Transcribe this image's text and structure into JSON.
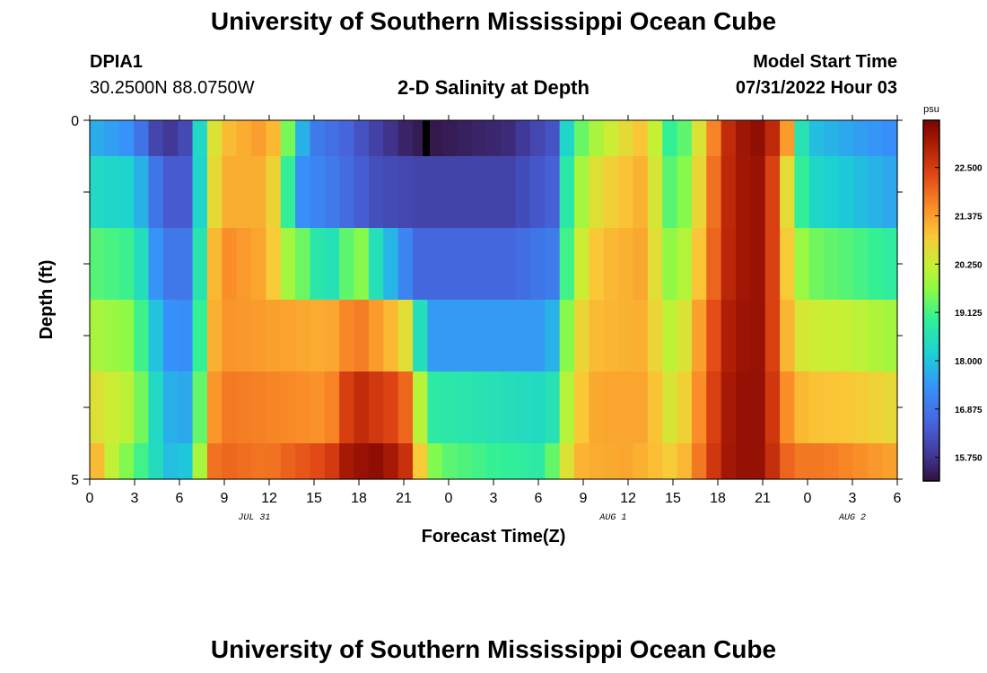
{
  "header": {
    "title": "University of Southern Mississippi Ocean Cube",
    "station": "DPIA1",
    "coords": "30.2500N  88.0750W",
    "plot_title": "2-D Salinity at Depth",
    "model_start_label": "Model Start Time",
    "model_start_value": "07/31/2022 Hour 03"
  },
  "footer": {
    "title": "University of Southern Mississippi Ocean Cube"
  },
  "chart_data": {
    "type": "heatmap",
    "title": "2-D Salinity at Depth",
    "xlabel": "Forecast Time(Z)",
    "ylabel": "Depth (ft)",
    "x_tick_labels": [
      "0",
      "3",
      "6",
      "9",
      "12",
      "15",
      "18",
      "21",
      "0",
      "3",
      "6",
      "9",
      "12",
      "15",
      "18",
      "21",
      "0",
      "3",
      "6"
    ],
    "x_date_labels": [
      {
        "label": "JUL 31",
        "hour": 11
      },
      {
        "label": "AUG 1",
        "hour": 35
      },
      {
        "label": "AUG 2",
        "hour": 51
      }
    ],
    "x_range_hours": [
      0,
      54
    ],
    "y_tick_labels": [
      "0",
      "5"
    ],
    "y_range": [
      0,
      5
    ],
    "colorbar": {
      "unit": "psu",
      "tick_labels": [
        "22.500",
        "21.375",
        "20.250",
        "19.125",
        "18.000",
        "16.875",
        "15.750"
      ],
      "tick_values": [
        22.5,
        21.375,
        20.25,
        19.125,
        18.0,
        16.875,
        15.75
      ],
      "range": [
        15.2,
        23.6
      ]
    },
    "depth_levels": 5,
    "time_points": 55,
    "rows": [
      {
        "depth": 0.5,
        "keys": [
          [
            0,
            17.8
          ],
          [
            3,
            17.3
          ],
          [
            4,
            16.2
          ],
          [
            5,
            15.8
          ],
          [
            6,
            15.8
          ],
          [
            7,
            16.6
          ],
          [
            7.5,
            19.0
          ],
          [
            8,
            20.2
          ],
          [
            9,
            21.0
          ],
          [
            12,
            21.5
          ],
          [
            13,
            20.0
          ],
          [
            14,
            18.0
          ],
          [
            15,
            17.0
          ],
          [
            17,
            16.6
          ],
          [
            19,
            16.0
          ],
          [
            21,
            15.5
          ],
          [
            22.5,
            15.3
          ],
          [
            23,
            15.3
          ],
          [
            28,
            15.6
          ],
          [
            31,
            16.3
          ],
          [
            32,
            18.5
          ],
          [
            33,
            19.5
          ],
          [
            34,
            20.0
          ],
          [
            37,
            21.0
          ],
          [
            38,
            20.0
          ],
          [
            39,
            18.7
          ],
          [
            40,
            19.5
          ],
          [
            41,
            20.8
          ],
          [
            42,
            22.0
          ],
          [
            43,
            23.1
          ],
          [
            45,
            23.4
          ],
          [
            46,
            22.5
          ],
          [
            47,
            20.8
          ],
          [
            47.5,
            18.8
          ],
          [
            48,
            18.0
          ],
          [
            51,
            17.6
          ],
          [
            54,
            17.3
          ]
        ]
      },
      {
        "depth": 1.5,
        "keys": [
          [
            0,
            18.4
          ],
          [
            3,
            18.2
          ],
          [
            4,
            17.2
          ],
          [
            5,
            16.4
          ],
          [
            7,
            16.4
          ],
          [
            7.5,
            19.0
          ],
          [
            8,
            20.3
          ],
          [
            9,
            21.2
          ],
          [
            12,
            21.2
          ],
          [
            13,
            19.5
          ],
          [
            14,
            17.4
          ],
          [
            16,
            17.0
          ],
          [
            19,
            16.2
          ],
          [
            22,
            16.0
          ],
          [
            28,
            16.0
          ],
          [
            31,
            16.5
          ],
          [
            32,
            19.0
          ],
          [
            33,
            20.0
          ],
          [
            34,
            20.6
          ],
          [
            37,
            21.2
          ],
          [
            38,
            20.2
          ],
          [
            39,
            19.0
          ],
          [
            40,
            19.8
          ],
          [
            41,
            21.0
          ],
          [
            42,
            22.2
          ],
          [
            43,
            23.1
          ],
          [
            45,
            23.3
          ],
          [
            46,
            22.0
          ],
          [
            47,
            19.8
          ],
          [
            48,
            18.4
          ],
          [
            51,
            18.0
          ],
          [
            54,
            17.6
          ]
        ]
      },
      {
        "depth": 2.5,
        "keys": [
          [
            0,
            19.3
          ],
          [
            3,
            19.0
          ],
          [
            4,
            17.8
          ],
          [
            5,
            16.9
          ],
          [
            7,
            16.9
          ],
          [
            7.5,
            19.3
          ],
          [
            8,
            20.8
          ],
          [
            9,
            21.6
          ],
          [
            12,
            21.2
          ],
          [
            13,
            20.0
          ],
          [
            14,
            19.6
          ],
          [
            15,
            18.8
          ],
          [
            16,
            18.4
          ],
          [
            17,
            19.2
          ],
          [
            18,
            19.8
          ],
          [
            19,
            18.6
          ],
          [
            21,
            17.2
          ],
          [
            22,
            16.6
          ],
          [
            28,
            16.6
          ],
          [
            31,
            17.0
          ],
          [
            32,
            19.3
          ],
          [
            33,
            20.4
          ],
          [
            34,
            21.0
          ],
          [
            37,
            21.3
          ],
          [
            38,
            20.4
          ],
          [
            39,
            19.5
          ],
          [
            40,
            20.2
          ],
          [
            41,
            21.2
          ],
          [
            42,
            22.3
          ],
          [
            43,
            23.1
          ],
          [
            45,
            23.3
          ],
          [
            46,
            22.0
          ],
          [
            47,
            20.2
          ],
          [
            48,
            19.5
          ],
          [
            51,
            19.2
          ],
          [
            54,
            18.8
          ]
        ]
      },
      {
        "depth": 3.5,
        "keys": [
          [
            0,
            20.0
          ],
          [
            3,
            19.6
          ],
          [
            4,
            18.4
          ],
          [
            5,
            17.4
          ],
          [
            7,
            17.3
          ],
          [
            7.5,
            19.6
          ],
          [
            8,
            21.0
          ],
          [
            9,
            21.5
          ],
          [
            16,
            21.2
          ],
          [
            17,
            21.6
          ],
          [
            18,
            21.8
          ],
          [
            21,
            20.8
          ],
          [
            22,
            18.6
          ],
          [
            23,
            17.5
          ],
          [
            30,
            17.5
          ],
          [
            31,
            17.8
          ],
          [
            32,
            19.8
          ],
          [
            33,
            20.8
          ],
          [
            34,
            21.1
          ],
          [
            37,
            21.2
          ],
          [
            38,
            20.6
          ],
          [
            39,
            20.0
          ],
          [
            40,
            20.6
          ],
          [
            41,
            21.6
          ],
          [
            42,
            22.5
          ],
          [
            43,
            23.2
          ],
          [
            45,
            23.3
          ],
          [
            46,
            22.0
          ],
          [
            47,
            20.6
          ],
          [
            48,
            20.3
          ],
          [
            51,
            20.2
          ],
          [
            54,
            19.8
          ]
        ]
      },
      {
        "depth": 4.5,
        "keys": [
          [
            0,
            20.6
          ],
          [
            3,
            20.0
          ],
          [
            4,
            18.8
          ],
          [
            5,
            17.8
          ],
          [
            7,
            17.6
          ],
          [
            7.5,
            20.0
          ],
          [
            8,
            21.3
          ],
          [
            9,
            21.8
          ],
          [
            16,
            21.5
          ],
          [
            17,
            22.4
          ],
          [
            18,
            22.8
          ],
          [
            21,
            22.2
          ],
          [
            22,
            20.2
          ],
          [
            23,
            18.8
          ],
          [
            30,
            18.4
          ],
          [
            31,
            18.6
          ],
          [
            32,
            20.2
          ],
          [
            33,
            21.0
          ],
          [
            34,
            21.3
          ],
          [
            37,
            21.3
          ],
          [
            38,
            20.9
          ],
          [
            39,
            20.3
          ],
          [
            40,
            20.9
          ],
          [
            41,
            21.8
          ],
          [
            42,
            22.7
          ],
          [
            43,
            23.3
          ],
          [
            45,
            23.3
          ],
          [
            46,
            22.2
          ],
          [
            47,
            21.2
          ],
          [
            48,
            21.0
          ],
          [
            51,
            20.9
          ],
          [
            54,
            20.6
          ]
        ]
      },
      {
        "depth": 5.0,
        "keys": [
          [
            0,
            21.6
          ],
          [
            1,
            20.5
          ],
          [
            2,
            19.8
          ],
          [
            4,
            18.8
          ],
          [
            5,
            18.0
          ],
          [
            6,
            17.8
          ],
          [
            7,
            18.4
          ],
          [
            7.5,
            20.5
          ],
          [
            8,
            21.8
          ],
          [
            9,
            22.0
          ],
          [
            12,
            21.8
          ],
          [
            13,
            22.0
          ],
          [
            16,
            22.4
          ],
          [
            17,
            23.1
          ],
          [
            19,
            23.4
          ],
          [
            21,
            22.9
          ],
          [
            22,
            21.0
          ],
          [
            23,
            19.6
          ],
          [
            24,
            19.3
          ],
          [
            27,
            19.0
          ],
          [
            30,
            18.8
          ],
          [
            31,
            19.4
          ],
          [
            32,
            20.6
          ],
          [
            33,
            21.2
          ],
          [
            36,
            21.3
          ],
          [
            38,
            21.0
          ],
          [
            39,
            20.8
          ],
          [
            40,
            21.2
          ],
          [
            41,
            22.0
          ],
          [
            42,
            22.8
          ],
          [
            43,
            23.3
          ],
          [
            45,
            23.3
          ],
          [
            46,
            22.4
          ],
          [
            47,
            21.8
          ],
          [
            49,
            21.8
          ],
          [
            51,
            21.6
          ],
          [
            54,
            21.3
          ]
        ]
      }
    ],
    "gaps": [
      {
        "hour": 22.5,
        "depth_range": [
          0,
          0.5
        ],
        "color": "#000000"
      }
    ]
  }
}
